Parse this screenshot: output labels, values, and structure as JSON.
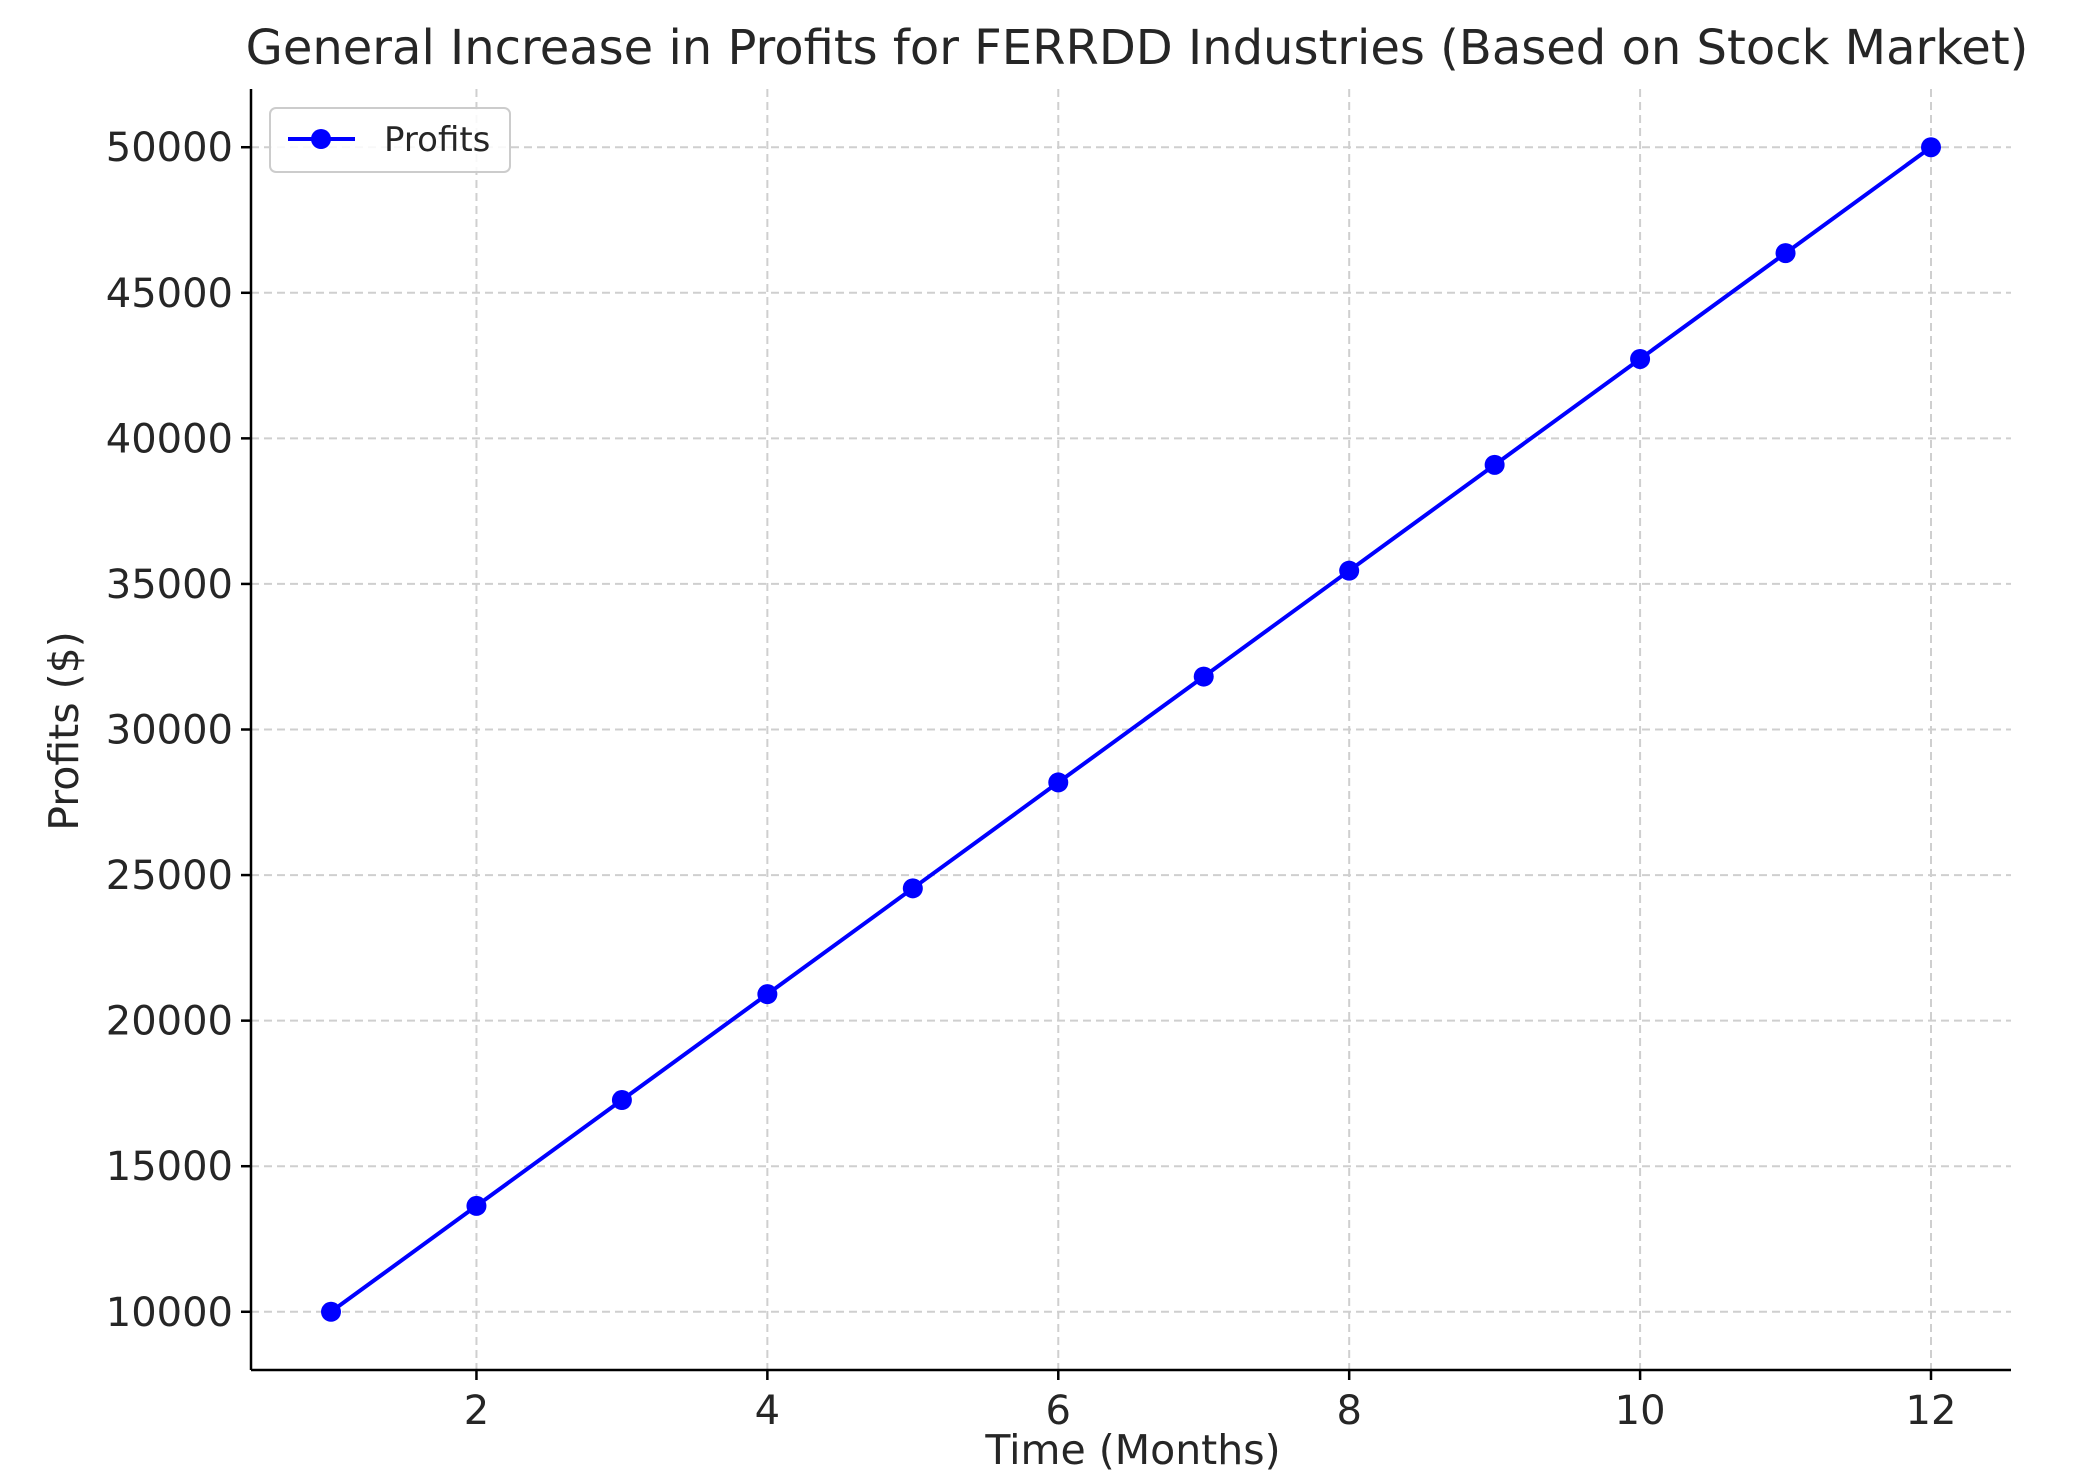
{
  "chart_data": {
    "type": "line",
    "title": "General Increase in Profits for FERRDD Industries (Based on Stock Market)",
    "xlabel": "Time (Months)",
    "ylabel": "Profits ($)",
    "x": [
      1,
      2,
      3,
      4,
      5,
      6,
      7,
      8,
      9,
      10,
      11,
      12
    ],
    "series": [
      {
        "name": "Profits",
        "color": "#0000ff",
        "marker": "circle",
        "values": [
          10000,
          13636,
          17273,
          20909,
          24545,
          28182,
          31818,
          35455,
          39091,
          42727,
          46364,
          50000
        ]
      }
    ],
    "xlim": [
      0.45,
      12.55
    ],
    "ylim": [
      8000,
      52000
    ],
    "xticks": [
      2,
      4,
      6,
      8,
      10,
      12
    ],
    "yticks": [
      10000,
      15000,
      20000,
      25000,
      30000,
      35000,
      40000,
      45000,
      50000
    ],
    "grid": true,
    "legend": "top-left"
  }
}
